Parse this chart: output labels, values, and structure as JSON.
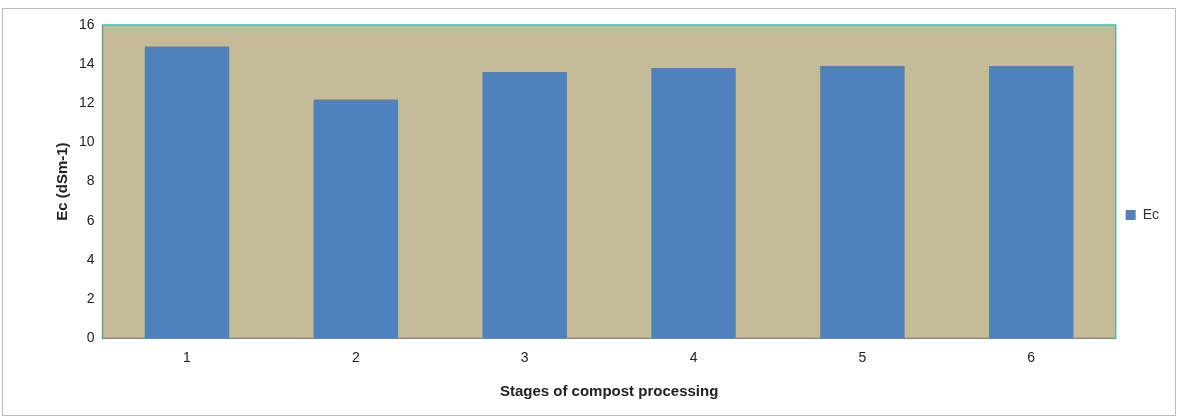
{
  "chart_data": {
    "type": "bar",
    "xlabel": "Stages of compost processing",
    "ylabel": "Ec (dSm-1)",
    "categories": [
      "1",
      "2",
      "3",
      "4",
      "5",
      "6"
    ],
    "series": [
      {
        "name": "Ec",
        "color": "#4f81bd",
        "values": [
          14.9,
          12.2,
          13.6,
          13.8,
          13.9,
          13.9
        ]
      }
    ],
    "ylim": [
      0,
      16
    ],
    "yticks": [
      0,
      2,
      4,
      6,
      8,
      10,
      12,
      14,
      16
    ],
    "grid": false,
    "legend": "right"
  }
}
